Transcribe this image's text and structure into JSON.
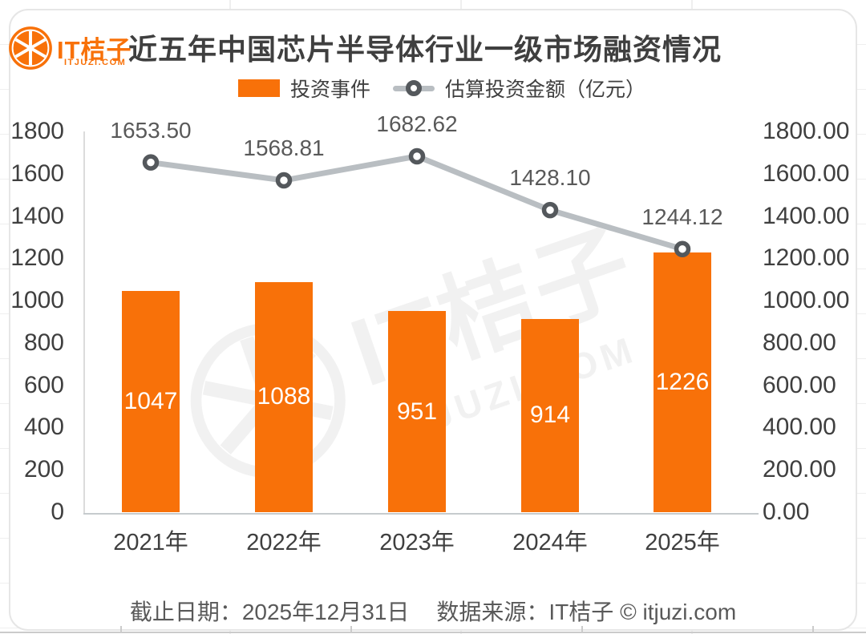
{
  "brand": {
    "logo_text": "IT桔子",
    "logo_domain": "ITJUZI.COM",
    "orange": "#f87109"
  },
  "title": "近五年中国芯片半导体行业一级市场融资情况",
  "legend": [
    {
      "label": "投资事件",
      "swatch": "bar-swatch",
      "color": "#f87109"
    },
    {
      "label": "估算投资金额（亿元）",
      "swatch": "line-swatch",
      "line_color": "#b9bec2",
      "marker_color": "#54585c"
    }
  ],
  "chart_data": {
    "type": "bar",
    "subtype": "bar+line combo, dual axis",
    "categories": [
      "2021年",
      "2022年",
      "2023年",
      "2024年",
      "2025年"
    ],
    "series": [
      {
        "name": "投资事件",
        "type": "bar",
        "axis": "left",
        "values": [
          1047,
          1088,
          951,
          914,
          1226
        ],
        "color": "#f87109",
        "label_color": "#ffffff"
      },
      {
        "name": "估算投资金额（亿元）",
        "type": "line",
        "axis": "right",
        "values": [
          1653.5,
          1568.81,
          1682.62,
          1428.1,
          1244.12
        ],
        "labels": [
          "1653.50",
          "1568.81",
          "1682.62",
          "1428.10",
          "1244.12"
        ],
        "line_color": "#b9bec2",
        "marker_color": "#54585c"
      }
    ],
    "left_axis": {
      "min": 0,
      "max": 1800,
      "step": 200,
      "ticks": [
        "1800",
        "1600",
        "1400",
        "1200",
        "1000",
        "800",
        "600",
        "400",
        "200",
        "0"
      ]
    },
    "right_axis": {
      "min": 0,
      "max": 1800,
      "step": 200,
      "ticks": [
        "1800.00",
        "1600.00",
        "1400.00",
        "1200.00",
        "1000.00",
        "800.00",
        "600.00",
        "400.00",
        "200.00",
        "0.00"
      ]
    },
    "grid": false,
    "legend_position": "top"
  },
  "watermark": {
    "text": "IT桔子",
    "subtext": "ITJUZI.COM"
  },
  "footer": {
    "deadline": "截止日期：2025年12月31日",
    "source": "数据来源：IT桔子 © itjuzi.com"
  }
}
